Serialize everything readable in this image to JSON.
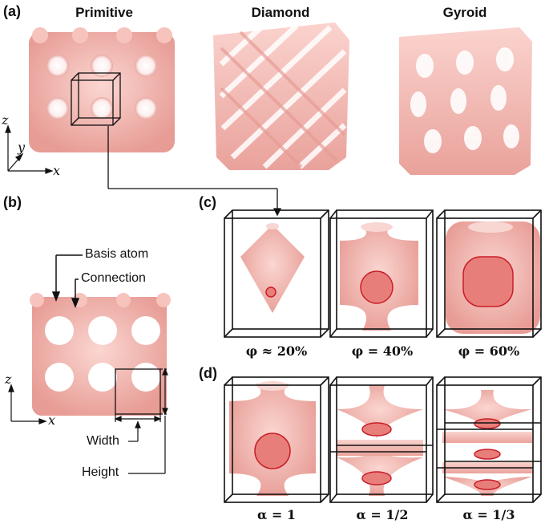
{
  "panels": {
    "a": "(a)",
    "b": "(b)",
    "c": "(c)",
    "d": "(d)"
  },
  "structures": [
    {
      "name": "Primitive"
    },
    {
      "name": "Diamond"
    },
    {
      "name": "Gyroid"
    }
  ],
  "axes": {
    "a": {
      "z": "z",
      "y": "y",
      "x": "x"
    },
    "b": {
      "z": "z",
      "x": "x"
    }
  },
  "annotations": {
    "basis_atom": "Basis atom",
    "connection": "Connection",
    "width": "Width",
    "height": "Height"
  },
  "row_c": {
    "captions": [
      "φ ≈ 20%",
      "φ = 40%",
      "φ = 60%"
    ],
    "porosity_percent": [
      20,
      40,
      60
    ]
  },
  "row_d": {
    "captions": [
      "α = 1",
      "α = 1/2",
      "α = 1/3"
    ],
    "layers": [
      1,
      2,
      3
    ]
  },
  "colors": {
    "lattice": "#f2b4ac",
    "lattice_shadow": "#d98b84",
    "section_fill": "#e87e7a",
    "section_stroke": "#c81e28",
    "frame": "#111111"
  }
}
